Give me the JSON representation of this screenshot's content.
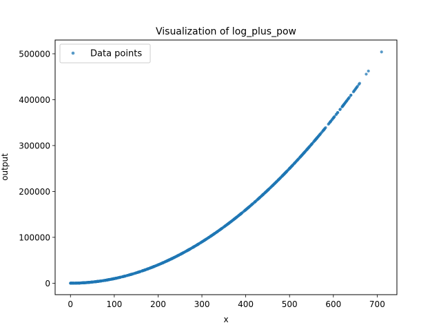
{
  "chart_data": {
    "type": "scatter",
    "title": "Visualization of log_plus_pow",
    "xlabel": "x",
    "ylabel": "output",
    "xlim": [
      -35,
      745
    ],
    "ylim": [
      -25000,
      530000
    ],
    "xticks": [
      0,
      100,
      200,
      300,
      400,
      500,
      600,
      700
    ],
    "yticks": [
      0,
      100000,
      200000,
      300000,
      400000,
      500000
    ],
    "grid": false,
    "legend_position": "top-left",
    "series": [
      {
        "name": "Data points",
        "color": "#1f77b4",
        "formula_hint": "y ≈ x^2",
        "x_min": 0,
        "x_max": 710,
        "n_points": 900,
        "x_sample": [
          0,
          1,
          2,
          3,
          5,
          8,
          10,
          12,
          15,
          18,
          20,
          22,
          25,
          28,
          30,
          33,
          36,
          40,
          45,
          50,
          55,
          60,
          65,
          70,
          75,
          80,
          90,
          100,
          110,
          120,
          130,
          140,
          150,
          160,
          170,
          180,
          190,
          200,
          210,
          220,
          230,
          240,
          250,
          260,
          270,
          280,
          290,
          300,
          310,
          320,
          330,
          340,
          350,
          360,
          370,
          380,
          390,
          400,
          410,
          420,
          430,
          440,
          450,
          460,
          470,
          480,
          490,
          500,
          510,
          520,
          530,
          540,
          550,
          560,
          570,
          580,
          590,
          600,
          610,
          615,
          620,
          625,
          630,
          640,
          650,
          660,
          675,
          680,
          710
        ],
        "y_sample": [
          0,
          1,
          5,
          12,
          32,
          70,
          106,
          150,
          231,
          330,
          405,
          490,
          630,
          790,
          910,
          1100,
          1310,
          1610,
          2030,
          2510,
          3040,
          3610,
          4230,
          4910,
          5630,
          6410,
          8110,
          10010,
          12110,
          14410,
          16910,
          19610,
          22510,
          25610,
          28910,
          32410,
          36110,
          40010,
          44110,
          48410,
          52910,
          57610,
          62510,
          67610,
          72910,
          78410,
          84110,
          90010,
          96110,
          102410,
          108910,
          115610,
          122510,
          129610,
          136910,
          144410,
          152110,
          160010,
          168110,
          176410,
          184910,
          193610,
          202510,
          211610,
          220910,
          230410,
          240110,
          250010,
          260110,
          270410,
          280910,
          291610,
          302510,
          313610,
          324910,
          336410,
          348110,
          360010,
          372110,
          378210,
          384410,
          390610,
          396910,
          409610,
          422510,
          435610,
          455610,
          462410,
          504110
        ]
      }
    ]
  }
}
